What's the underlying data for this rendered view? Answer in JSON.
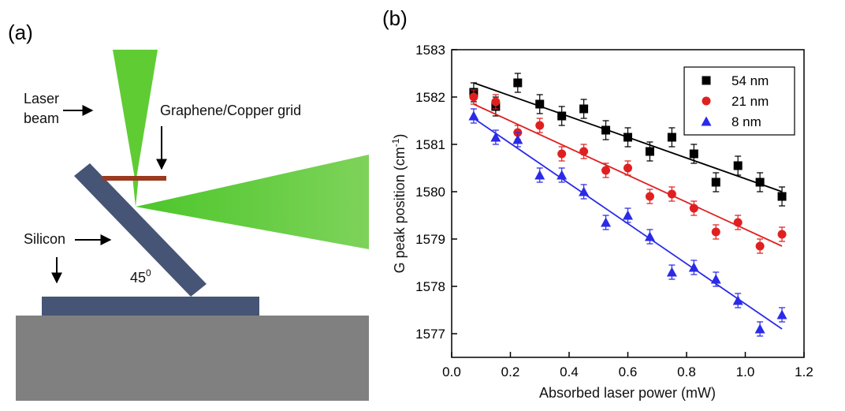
{
  "panel_a": {
    "label": "(a)",
    "laser_label": [
      "Laser",
      "beam"
    ],
    "grid_label": "Graphene/Copper grid",
    "silicon_label": "Silicon",
    "angle_label": {
      "text": "45",
      "sup": "0"
    }
  },
  "chart_data": {
    "type": "scatter",
    "panel_label": "(b)",
    "x_label": "Absorbed laser power (mW)",
    "y_label": {
      "text": "G peak position (cm",
      "sup": "-1",
      "end": ")"
    },
    "x": [
      0.075,
      0.15,
      0.225,
      0.3,
      0.375,
      0.45,
      0.525,
      0.6,
      0.675,
      0.75,
      0.825,
      0.9,
      0.975,
      1.05,
      1.125
    ],
    "xlim": [
      0,
      1.2
    ],
    "xticks": [
      {
        "value": 0,
        "label": "0.0"
      },
      0.2,
      0.4,
      0.6,
      0.8,
      {
        "value": 1,
        "label": "1.0"
      },
      1.2
    ],
    "ylim": [
      1576.5,
      1583
    ],
    "yticks": [
      1577,
      1578,
      1579,
      1580,
      1581,
      1582,
      1583
    ],
    "legend": "upper right",
    "series": [
      {
        "name": "54 nm",
        "color": "#000000",
        "marker": "square",
        "error": 0.2,
        "values": [
          1582.1,
          1581.8,
          1582.3,
          1581.85,
          1581.6,
          1581.75,
          1581.3,
          1581.15,
          1580.85,
          1581.15,
          1580.8,
          1580.2,
          1580.55,
          1580.2,
          1579.9
        ],
        "fit": {
          "x": [
            0.075,
            1.125
          ],
          "y": [
            1582.3,
            1580.0
          ]
        }
      },
      {
        "name": "21 nm",
        "color": "#e02020",
        "marker": "circle",
        "error": 0.15,
        "values": [
          1582.0,
          1581.9,
          1581.25,
          1581.4,
          1580.8,
          1580.85,
          1580.45,
          1580.5,
          1579.9,
          1579.95,
          1579.65,
          1579.15,
          1579.35,
          1578.85,
          1579.1
        ],
        "fit": {
          "x": [
            0.075,
            1.125
          ],
          "y": [
            1581.85,
            1578.85
          ]
        }
      },
      {
        "name": "8 nm",
        "color": "#2a2ae8",
        "marker": "triangle",
        "error": 0.15,
        "values": [
          1581.6,
          1581.15,
          1581.1,
          1580.35,
          1580.35,
          1580.0,
          1579.35,
          1579.5,
          1579.05,
          1578.3,
          1578.4,
          1578.15,
          1577.7,
          1577.1,
          1577.4
        ],
        "fit": {
          "x": [
            0.075,
            1.125
          ],
          "y": [
            1581.55,
            1577.1
          ]
        }
      }
    ]
  }
}
